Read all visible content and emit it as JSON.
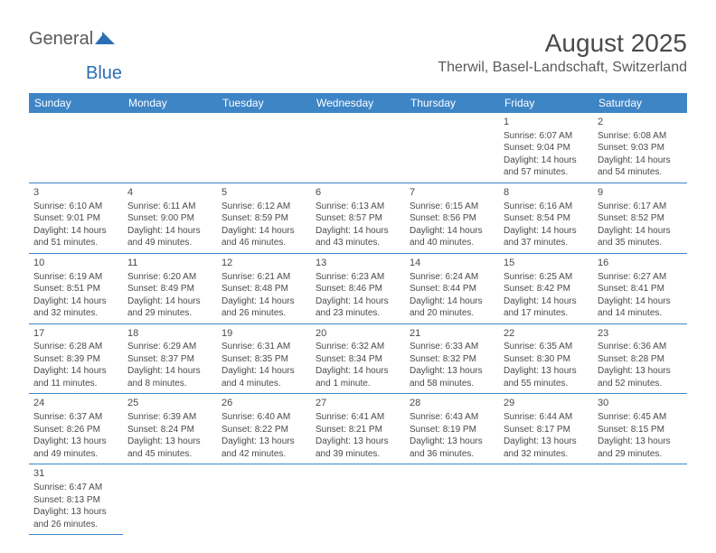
{
  "logo": {
    "general": "General",
    "blue": "Blue"
  },
  "title": "August 2025",
  "location": "Therwil, Basel-Landschaft, Switzerland",
  "colors": {
    "header_bg": "#3e85c6",
    "header_text": "#ffffff",
    "border": "#3e85c6",
    "text": "#4a4a4a",
    "logo_blue": "#2a6fb5"
  },
  "weekdays": [
    "Sunday",
    "Monday",
    "Tuesday",
    "Wednesday",
    "Thursday",
    "Friday",
    "Saturday"
  ],
  "weeks": [
    [
      null,
      null,
      null,
      null,
      null,
      {
        "day": "1",
        "sunrise": "Sunrise: 6:07 AM",
        "sunset": "Sunset: 9:04 PM",
        "daylight": "Daylight: 14 hours and 57 minutes."
      },
      {
        "day": "2",
        "sunrise": "Sunrise: 6:08 AM",
        "sunset": "Sunset: 9:03 PM",
        "daylight": "Daylight: 14 hours and 54 minutes."
      }
    ],
    [
      {
        "day": "3",
        "sunrise": "Sunrise: 6:10 AM",
        "sunset": "Sunset: 9:01 PM",
        "daylight": "Daylight: 14 hours and 51 minutes."
      },
      {
        "day": "4",
        "sunrise": "Sunrise: 6:11 AM",
        "sunset": "Sunset: 9:00 PM",
        "daylight": "Daylight: 14 hours and 49 minutes."
      },
      {
        "day": "5",
        "sunrise": "Sunrise: 6:12 AM",
        "sunset": "Sunset: 8:59 PM",
        "daylight": "Daylight: 14 hours and 46 minutes."
      },
      {
        "day": "6",
        "sunrise": "Sunrise: 6:13 AM",
        "sunset": "Sunset: 8:57 PM",
        "daylight": "Daylight: 14 hours and 43 minutes."
      },
      {
        "day": "7",
        "sunrise": "Sunrise: 6:15 AM",
        "sunset": "Sunset: 8:56 PM",
        "daylight": "Daylight: 14 hours and 40 minutes."
      },
      {
        "day": "8",
        "sunrise": "Sunrise: 6:16 AM",
        "sunset": "Sunset: 8:54 PM",
        "daylight": "Daylight: 14 hours and 37 minutes."
      },
      {
        "day": "9",
        "sunrise": "Sunrise: 6:17 AM",
        "sunset": "Sunset: 8:52 PM",
        "daylight": "Daylight: 14 hours and 35 minutes."
      }
    ],
    [
      {
        "day": "10",
        "sunrise": "Sunrise: 6:19 AM",
        "sunset": "Sunset: 8:51 PM",
        "daylight": "Daylight: 14 hours and 32 minutes."
      },
      {
        "day": "11",
        "sunrise": "Sunrise: 6:20 AM",
        "sunset": "Sunset: 8:49 PM",
        "daylight": "Daylight: 14 hours and 29 minutes."
      },
      {
        "day": "12",
        "sunrise": "Sunrise: 6:21 AM",
        "sunset": "Sunset: 8:48 PM",
        "daylight": "Daylight: 14 hours and 26 minutes."
      },
      {
        "day": "13",
        "sunrise": "Sunrise: 6:23 AM",
        "sunset": "Sunset: 8:46 PM",
        "daylight": "Daylight: 14 hours and 23 minutes."
      },
      {
        "day": "14",
        "sunrise": "Sunrise: 6:24 AM",
        "sunset": "Sunset: 8:44 PM",
        "daylight": "Daylight: 14 hours and 20 minutes."
      },
      {
        "day": "15",
        "sunrise": "Sunrise: 6:25 AM",
        "sunset": "Sunset: 8:42 PM",
        "daylight": "Daylight: 14 hours and 17 minutes."
      },
      {
        "day": "16",
        "sunrise": "Sunrise: 6:27 AM",
        "sunset": "Sunset: 8:41 PM",
        "daylight": "Daylight: 14 hours and 14 minutes."
      }
    ],
    [
      {
        "day": "17",
        "sunrise": "Sunrise: 6:28 AM",
        "sunset": "Sunset: 8:39 PM",
        "daylight": "Daylight: 14 hours and 11 minutes."
      },
      {
        "day": "18",
        "sunrise": "Sunrise: 6:29 AM",
        "sunset": "Sunset: 8:37 PM",
        "daylight": "Daylight: 14 hours and 8 minutes."
      },
      {
        "day": "19",
        "sunrise": "Sunrise: 6:31 AM",
        "sunset": "Sunset: 8:35 PM",
        "daylight": "Daylight: 14 hours and 4 minutes."
      },
      {
        "day": "20",
        "sunrise": "Sunrise: 6:32 AM",
        "sunset": "Sunset: 8:34 PM",
        "daylight": "Daylight: 14 hours and 1 minute."
      },
      {
        "day": "21",
        "sunrise": "Sunrise: 6:33 AM",
        "sunset": "Sunset: 8:32 PM",
        "daylight": "Daylight: 13 hours and 58 minutes."
      },
      {
        "day": "22",
        "sunrise": "Sunrise: 6:35 AM",
        "sunset": "Sunset: 8:30 PM",
        "daylight": "Daylight: 13 hours and 55 minutes."
      },
      {
        "day": "23",
        "sunrise": "Sunrise: 6:36 AM",
        "sunset": "Sunset: 8:28 PM",
        "daylight": "Daylight: 13 hours and 52 minutes."
      }
    ],
    [
      {
        "day": "24",
        "sunrise": "Sunrise: 6:37 AM",
        "sunset": "Sunset: 8:26 PM",
        "daylight": "Daylight: 13 hours and 49 minutes."
      },
      {
        "day": "25",
        "sunrise": "Sunrise: 6:39 AM",
        "sunset": "Sunset: 8:24 PM",
        "daylight": "Daylight: 13 hours and 45 minutes."
      },
      {
        "day": "26",
        "sunrise": "Sunrise: 6:40 AM",
        "sunset": "Sunset: 8:22 PM",
        "daylight": "Daylight: 13 hours and 42 minutes."
      },
      {
        "day": "27",
        "sunrise": "Sunrise: 6:41 AM",
        "sunset": "Sunset: 8:21 PM",
        "daylight": "Daylight: 13 hours and 39 minutes."
      },
      {
        "day": "28",
        "sunrise": "Sunrise: 6:43 AM",
        "sunset": "Sunset: 8:19 PM",
        "daylight": "Daylight: 13 hours and 36 minutes."
      },
      {
        "day": "29",
        "sunrise": "Sunrise: 6:44 AM",
        "sunset": "Sunset: 8:17 PM",
        "daylight": "Daylight: 13 hours and 32 minutes."
      },
      {
        "day": "30",
        "sunrise": "Sunrise: 6:45 AM",
        "sunset": "Sunset: 8:15 PM",
        "daylight": "Daylight: 13 hours and 29 minutes."
      }
    ],
    [
      {
        "day": "31",
        "sunrise": "Sunrise: 6:47 AM",
        "sunset": "Sunset: 8:13 PM",
        "daylight": "Daylight: 13 hours and 26 minutes."
      },
      null,
      null,
      null,
      null,
      null,
      null
    ]
  ]
}
